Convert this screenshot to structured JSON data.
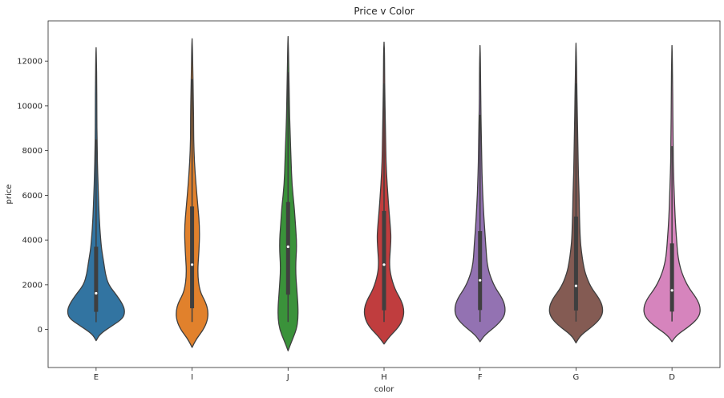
{
  "chart_data": {
    "type": "violin",
    "title": "Price v Color",
    "xlabel": "color",
    "ylabel": "price",
    "ylim": [
      -1700,
      13800
    ],
    "yticks": [
      0,
      2000,
      4000,
      6000,
      8000,
      10000,
      12000
    ],
    "ytick_labels": [
      "0",
      "2000",
      "4000",
      "6000",
      "8000",
      "10000",
      "12000"
    ],
    "grid": false,
    "legend": "none",
    "categories": [
      "E",
      "I",
      "J",
      "H",
      "F",
      "G",
      "D"
    ],
    "colors": [
      "#3274a1",
      "#e1812c",
      "#3a923a",
      "#c03d3e",
      "#9372b2",
      "#845b53",
      "#d684bd"
    ],
    "violins": [
      {
        "category": "E",
        "color": "#3274a1",
        "min": 326,
        "q1": 790,
        "median": 1620,
        "q3": 3700,
        "whisker_low": 326,
        "whisker_high": 8500,
        "profile": [
          [
            -500,
            0.0
          ],
          [
            -200,
            0.1
          ],
          [
            200,
            0.45
          ],
          [
            500,
            0.7
          ],
          [
            800,
            0.75
          ],
          [
            1100,
            0.7
          ],
          [
            1500,
            0.55
          ],
          [
            2000,
            0.32
          ],
          [
            2500,
            0.24
          ],
          [
            3000,
            0.2
          ],
          [
            3500,
            0.15
          ],
          [
            4000,
            0.12
          ],
          [
            5000,
            0.08
          ],
          [
            6000,
            0.06
          ],
          [
            7000,
            0.04
          ],
          [
            8000,
            0.03
          ],
          [
            9000,
            0.02
          ],
          [
            10000,
            0.02
          ],
          [
            11000,
            0.015
          ],
          [
            12000,
            0.01
          ],
          [
            12600,
            0.0
          ]
        ]
      },
      {
        "category": "I",
        "color": "#e1812c",
        "min": 334,
        "q1": 950,
        "median": 2900,
        "q3": 5500,
        "whisker_low": 334,
        "whisker_high": 11200,
        "profile": [
          [
            -800,
            0.0
          ],
          [
            -400,
            0.12
          ],
          [
            0,
            0.3
          ],
          [
            400,
            0.4
          ],
          [
            800,
            0.42
          ],
          [
            1200,
            0.36
          ],
          [
            1700,
            0.2
          ],
          [
            2500,
            0.14
          ],
          [
            3500,
            0.18
          ],
          [
            4500,
            0.2
          ],
          [
            5500,
            0.15
          ],
          [
            6500,
            0.1
          ],
          [
            7500,
            0.06
          ],
          [
            8500,
            0.04
          ],
          [
            9500,
            0.04
          ],
          [
            10500,
            0.03
          ],
          [
            11500,
            0.02
          ],
          [
            12500,
            0.01
          ],
          [
            13000,
            0.0
          ]
        ]
      },
      {
        "category": "J",
        "color": "#3a923a",
        "min": 335,
        "q1": 1560,
        "median": 3700,
        "q3": 5700,
        "whisker_low": 335,
        "whisker_high": 11500,
        "profile": [
          [
            -950,
            0.0
          ],
          [
            -500,
            0.1
          ],
          [
            0,
            0.22
          ],
          [
            500,
            0.26
          ],
          [
            1000,
            0.26
          ],
          [
            1500,
            0.24
          ],
          [
            2000,
            0.22
          ],
          [
            2500,
            0.2
          ],
          [
            3000,
            0.2
          ],
          [
            3500,
            0.22
          ],
          [
            4000,
            0.22
          ],
          [
            4500,
            0.2
          ],
          [
            5000,
            0.18
          ],
          [
            5500,
            0.16
          ],
          [
            6500,
            0.1
          ],
          [
            7500,
            0.08
          ],
          [
            8500,
            0.06
          ],
          [
            9500,
            0.04
          ],
          [
            10500,
            0.03
          ],
          [
            11500,
            0.02
          ],
          [
            12500,
            0.01
          ],
          [
            13100,
            0.0
          ]
        ]
      },
      {
        "category": "H",
        "color": "#c03d3e",
        "min": 337,
        "q1": 860,
        "median": 2900,
        "q3": 5300,
        "whisker_low": 337,
        "whisker_high": 11000,
        "profile": [
          [
            -650,
            0.0
          ],
          [
            -300,
            0.15
          ],
          [
            100,
            0.38
          ],
          [
            500,
            0.5
          ],
          [
            900,
            0.52
          ],
          [
            1300,
            0.45
          ],
          [
            1800,
            0.28
          ],
          [
            2500,
            0.16
          ],
          [
            3000,
            0.14
          ],
          [
            3500,
            0.16
          ],
          [
            4000,
            0.18
          ],
          [
            4500,
            0.17
          ],
          [
            5500,
            0.12
          ],
          [
            6500,
            0.08
          ],
          [
            7500,
            0.05
          ],
          [
            8500,
            0.04
          ],
          [
            9500,
            0.03
          ],
          [
            10500,
            0.02
          ],
          [
            11500,
            0.015
          ],
          [
            12500,
            0.01
          ],
          [
            12850,
            0.0
          ]
        ]
      },
      {
        "category": "F",
        "color": "#9372b2",
        "min": 342,
        "q1": 870,
        "median": 2200,
        "q3": 4400,
        "whisker_low": 342,
        "whisker_high": 9600,
        "profile": [
          [
            -550,
            0.0
          ],
          [
            -250,
            0.12
          ],
          [
            200,
            0.45
          ],
          [
            600,
            0.64
          ],
          [
            1000,
            0.66
          ],
          [
            1400,
            0.58
          ],
          [
            1900,
            0.38
          ],
          [
            2500,
            0.24
          ],
          [
            3000,
            0.18
          ],
          [
            3500,
            0.16
          ],
          [
            4000,
            0.14
          ],
          [
            5000,
            0.1
          ],
          [
            6000,
            0.07
          ],
          [
            7000,
            0.05
          ],
          [
            8000,
            0.04
          ],
          [
            9000,
            0.03
          ],
          [
            10000,
            0.02
          ],
          [
            11000,
            0.015
          ],
          [
            12000,
            0.01
          ],
          [
            12700,
            0.0
          ]
        ]
      },
      {
        "category": "G",
        "color": "#845b53",
        "min": 354,
        "q1": 850,
        "median": 1950,
        "q3": 5050,
        "whisker_low": 354,
        "whisker_high": 11000,
        "profile": [
          [
            -600,
            0.0
          ],
          [
            -250,
            0.12
          ],
          [
            200,
            0.48
          ],
          [
            600,
            0.68
          ],
          [
            1000,
            0.7
          ],
          [
            1400,
            0.6
          ],
          [
            1900,
            0.38
          ],
          [
            2500,
            0.24
          ],
          [
            3000,
            0.18
          ],
          [
            3500,
            0.14
          ],
          [
            4000,
            0.11
          ],
          [
            5000,
            0.09
          ],
          [
            6000,
            0.08
          ],
          [
            7000,
            0.06
          ],
          [
            8000,
            0.05
          ],
          [
            9000,
            0.04
          ],
          [
            10000,
            0.03
          ],
          [
            11000,
            0.02
          ],
          [
            12000,
            0.012
          ],
          [
            12800,
            0.0
          ]
        ]
      },
      {
        "category": "D",
        "color": "#d684bd",
        "min": 357,
        "q1": 800,
        "median": 1750,
        "q3": 3850,
        "whisker_low": 357,
        "whisker_high": 8200,
        "profile": [
          [
            -550,
            0.0
          ],
          [
            -250,
            0.12
          ],
          [
            200,
            0.5
          ],
          [
            600,
            0.72
          ],
          [
            1000,
            0.74
          ],
          [
            1400,
            0.64
          ],
          [
            1900,
            0.42
          ],
          [
            2500,
            0.26
          ],
          [
            3000,
            0.18
          ],
          [
            3500,
            0.14
          ],
          [
            4000,
            0.12
          ],
          [
            5000,
            0.08
          ],
          [
            6000,
            0.06
          ],
          [
            7000,
            0.04
          ],
          [
            8000,
            0.03
          ],
          [
            9000,
            0.025
          ],
          [
            10000,
            0.02
          ],
          [
            11000,
            0.015
          ],
          [
            12000,
            0.01
          ],
          [
            12700,
            0.0
          ]
        ]
      }
    ]
  }
}
